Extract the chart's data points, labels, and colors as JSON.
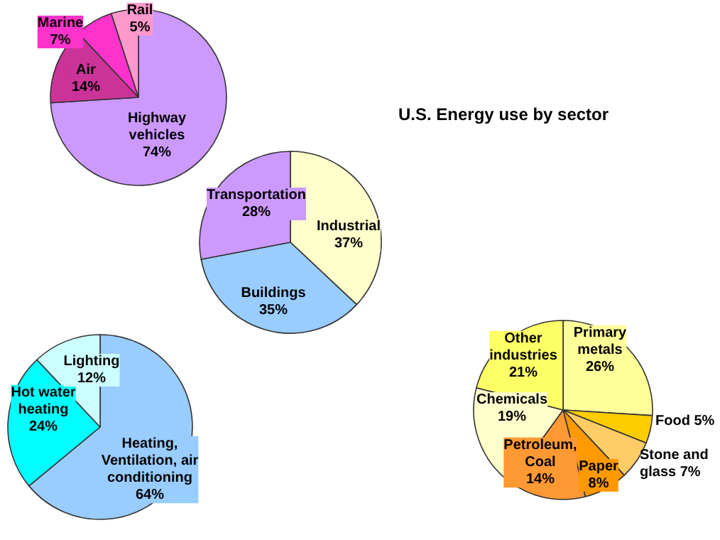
{
  "chart_data": [
    {
      "type": "pie",
      "categories": [
        "Highway vehicles",
        "Air",
        "Marine",
        "Rail"
      ],
      "values": [
        74,
        14,
        7,
        5
      ],
      "colors": [
        "#cc99ff",
        "#cc3399",
        "#ff33cc",
        "#ff99cc"
      ],
      "value_labels": [
        "74%",
        "14%",
        "7%",
        "5%"
      ]
    },
    {
      "type": "pie",
      "title": "U.S. Energy use by sector",
      "categories": [
        "Industrial",
        "Buildings",
        "Transportation"
      ],
      "values": [
        37,
        35,
        28
      ],
      "colors": [
        "#ffffcc",
        "#99ccff",
        "#cc99ff"
      ],
      "value_labels": [
        "37%",
        "35%",
        "28%"
      ]
    },
    {
      "type": "pie",
      "categories": [
        "Heating, Ventilation, air conditioning",
        "Hot water heating",
        "Lighting"
      ],
      "values": [
        64,
        24,
        12
      ],
      "colors": [
        "#99ccff",
        "#00ffff",
        "#ccffff"
      ],
      "value_labels": [
        "64%",
        "24%",
        "12%"
      ]
    },
    {
      "type": "pie",
      "categories": [
        "Primary metals",
        "Food",
        "Stone and glass",
        "Paper",
        "Petroleum, Coal",
        "Chemicals",
        "Other industries"
      ],
      "values": [
        26,
        5,
        7,
        8,
        14,
        19,
        21
      ],
      "colors": [
        "#ffff99",
        "#ffcc00",
        "#ffcc66",
        "#ff9900",
        "#ff9933",
        "#ffffcc",
        "#ffff66"
      ],
      "value_labels": [
        "26%",
        "5%",
        "7%",
        "8%",
        "14%",
        "19%",
        "21%"
      ]
    }
  ]
}
